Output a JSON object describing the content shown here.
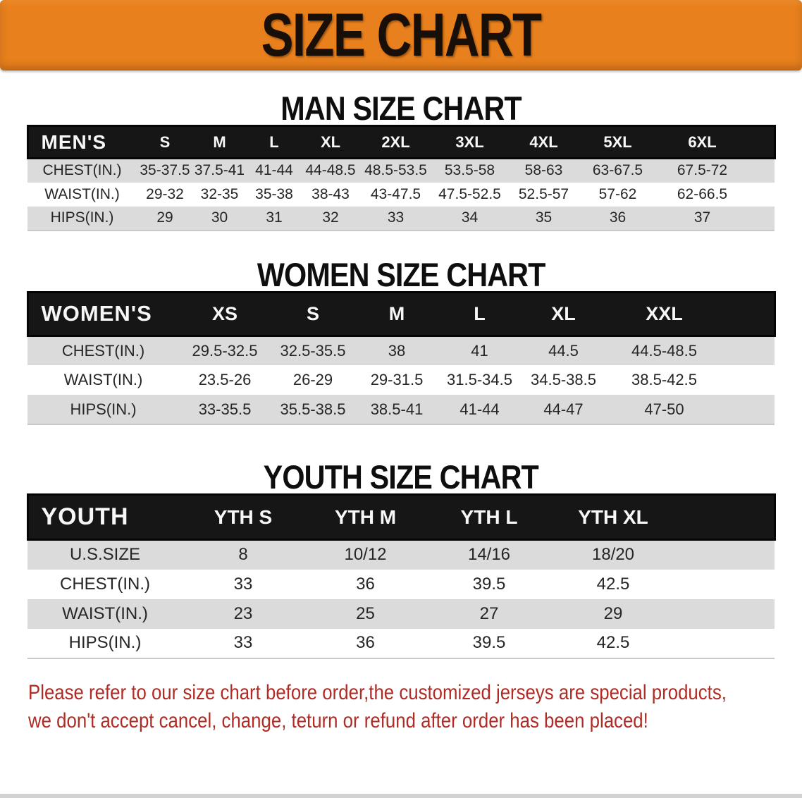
{
  "banner": {
    "title": "SIZE CHART"
  },
  "colors": {
    "banner_bg": "#E8801D",
    "header_bar": "#161616",
    "row_gray": "#DBDBDB",
    "disclaimer_red": "#B12B25"
  },
  "sections": {
    "men": {
      "heading": "MAN SIZE CHART",
      "table": {
        "header_label": "MEN'S",
        "columns": [
          "S",
          "M",
          "L",
          "XL",
          "2XL",
          "3XL",
          "4XL",
          "5XL",
          "6XL"
        ],
        "rows": [
          {
            "label": "CHEST(IN.)",
            "values": [
              "35-37.5",
              "37.5-41",
              "41-44",
              "44-48.5",
              "48.5-53.5",
              "53.5-58",
              "58-63",
              "63-67.5",
              "67.5-72"
            ]
          },
          {
            "label": "WAIST(IN.)",
            "values": [
              "29-32",
              "32-35",
              "35-38",
              "38-43",
              "43-47.5",
              "47.5-52.5",
              "52.5-57",
              "57-62",
              "62-66.5"
            ]
          },
          {
            "label": "HIPS(IN.)",
            "values": [
              "29",
              "30",
              "31",
              "32",
              "33",
              "34",
              "35",
              "36",
              "37"
            ]
          }
        ]
      }
    },
    "women": {
      "heading": "WOMEN SIZE CHART",
      "table": {
        "header_label": "WOMEN'S",
        "columns": [
          "XS",
          "S",
          "M",
          "L",
          "XL",
          "XXL"
        ],
        "rows": [
          {
            "label": "CHEST(IN.)",
            "values": [
              "29.5-32.5",
              "32.5-35.5",
              "38",
              "41",
              "44.5",
              "44.5-48.5"
            ]
          },
          {
            "label": "WAIST(IN.)",
            "values": [
              "23.5-26",
              "26-29",
              "29-31.5",
              "31.5-34.5",
              "34.5-38.5",
              "38.5-42.5"
            ]
          },
          {
            "label": "HIPS(IN.)",
            "values": [
              "33-35.5",
              "35.5-38.5",
              "38.5-41",
              "41-44",
              "44-47",
              "47-50"
            ]
          }
        ]
      }
    },
    "youth": {
      "heading": "YOUTH SIZE CHART",
      "table": {
        "header_label": "YOUTH",
        "columns": [
          "YTH S",
          "YTH M",
          "YTH L",
          "YTH XL"
        ],
        "rows": [
          {
            "label": "U.S.SIZE",
            "values": [
              "8",
              "10/12",
              "14/16",
              "18/20"
            ]
          },
          {
            "label": "CHEST(IN.)",
            "values": [
              "33",
              "36",
              "39.5",
              "42.5"
            ]
          },
          {
            "label": "WAIST(IN.)",
            "values": [
              "23",
              "25",
              "27",
              "29"
            ]
          },
          {
            "label": "HIPS(IN.)",
            "values": [
              "33",
              "36",
              "39.5",
              "42.5"
            ]
          }
        ]
      }
    }
  },
  "disclaimer": {
    "line1": "Please refer to our size chart before order,the customized jerseys are special products,",
    "line2": "we don't accept cancel, change, teturn or refund after order has been placed!"
  }
}
